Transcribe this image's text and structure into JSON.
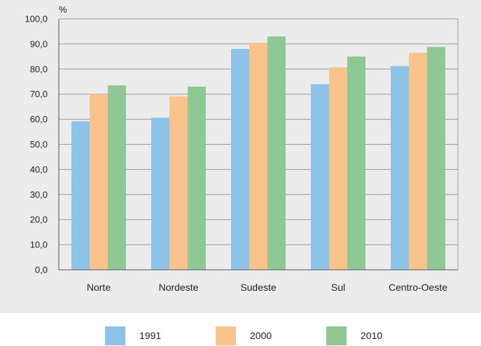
{
  "chart_data": {
    "type": "bar",
    "unit_label": "%",
    "categories": [
      "Norte",
      "Nordeste",
      "Sudeste",
      "Sul",
      "Centro-Oeste"
    ],
    "series": [
      {
        "name": "1991",
        "color": "#8ec2e6",
        "values": [
          59.2,
          60.6,
          88.0,
          74.0,
          81.2
        ]
      },
      {
        "name": "2000",
        "color": "#f8c38d",
        "values": [
          70.0,
          69.1,
          90.5,
          80.7,
          86.5
        ]
      },
      {
        "name": "2010",
        "color": "#8fc894",
        "values": [
          73.5,
          73.0,
          93.0,
          85.0,
          88.8
        ]
      }
    ],
    "ylim": [
      0,
      100
    ],
    "yticks": [
      "0,0",
      "10,0",
      "20,0",
      "30,0",
      "40,0",
      "50,0",
      "60,0",
      "70,0",
      "80,0",
      "90,0",
      "100,0"
    ],
    "grid": true,
    "legend_position": "bottom"
  }
}
